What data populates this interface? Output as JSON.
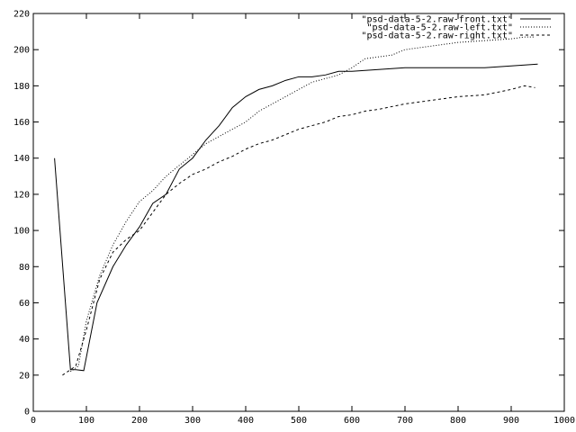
{
  "chart_data": {
    "type": "line",
    "title": "",
    "xlabel": "",
    "ylabel": "",
    "xlim": [
      0,
      1000
    ],
    "ylim": [
      0,
      220
    ],
    "xticks": [
      0,
      100,
      200,
      300,
      400,
      500,
      600,
      700,
      800,
      900,
      1000
    ],
    "yticks": [
      0,
      20,
      40,
      60,
      80,
      100,
      120,
      140,
      160,
      180,
      200,
      220
    ],
    "grid": false,
    "legend_placement": "top-right",
    "series": [
      {
        "name": "\"psd-data-5-2.raw-front.txt\"",
        "style": "solid",
        "x": [
          40,
          70,
          80,
          95,
          120,
          150,
          175,
          200,
          225,
          250,
          275,
          300,
          325,
          350,
          375,
          400,
          425,
          450,
          475,
          500,
          525,
          550,
          575,
          600,
          650,
          700,
          750,
          800,
          850,
          900,
          950
        ],
        "y": [
          140,
          23,
          23,
          22.5,
          60,
          80,
          92,
          102,
          115,
          120,
          134,
          140,
          150,
          158,
          168,
          174,
          178,
          180,
          183,
          185,
          185,
          186,
          188,
          188,
          189,
          190,
          190,
          190,
          190,
          191,
          192
        ]
      },
      {
        "name": "\"psd-data-5-2.raw-left.txt\"",
        "style": "dotted",
        "x": [
          70,
          85,
          100,
          125,
          150,
          175,
          200,
          225,
          250,
          275,
          300,
          325,
          350,
          375,
          400,
          425,
          450,
          475,
          500,
          525,
          550,
          575,
          600,
          625,
          650,
          675,
          700,
          750,
          800,
          850,
          900,
          925,
          945
        ],
        "y": [
          22,
          25,
          50,
          75,
          92,
          105,
          116,
          122,
          130,
          136,
          142,
          148,
          152,
          156,
          160,
          166,
          170,
          174,
          178,
          182,
          184,
          186,
          190,
          195,
          196,
          197,
          200,
          202,
          204,
          205,
          206,
          207,
          207
        ]
      },
      {
        "name": "\"psd-data-5-2.raw-right.txt\"",
        "style": "dashed",
        "x": [
          55,
          80,
          100,
          125,
          150,
          175,
          200,
          225,
          250,
          275,
          300,
          325,
          350,
          375,
          400,
          425,
          450,
          475,
          500,
          525,
          550,
          575,
          600,
          625,
          650,
          700,
          750,
          800,
          850,
          900,
          925,
          945
        ],
        "y": [
          20,
          25,
          45,
          73,
          88,
          95,
          100,
          110,
          120,
          126,
          131,
          134,
          138,
          141,
          145,
          148,
          150,
          153,
          156,
          158,
          160,
          163,
          164,
          166,
          167,
          170,
          172,
          174,
          175,
          178,
          180,
          179
        ]
      }
    ]
  }
}
